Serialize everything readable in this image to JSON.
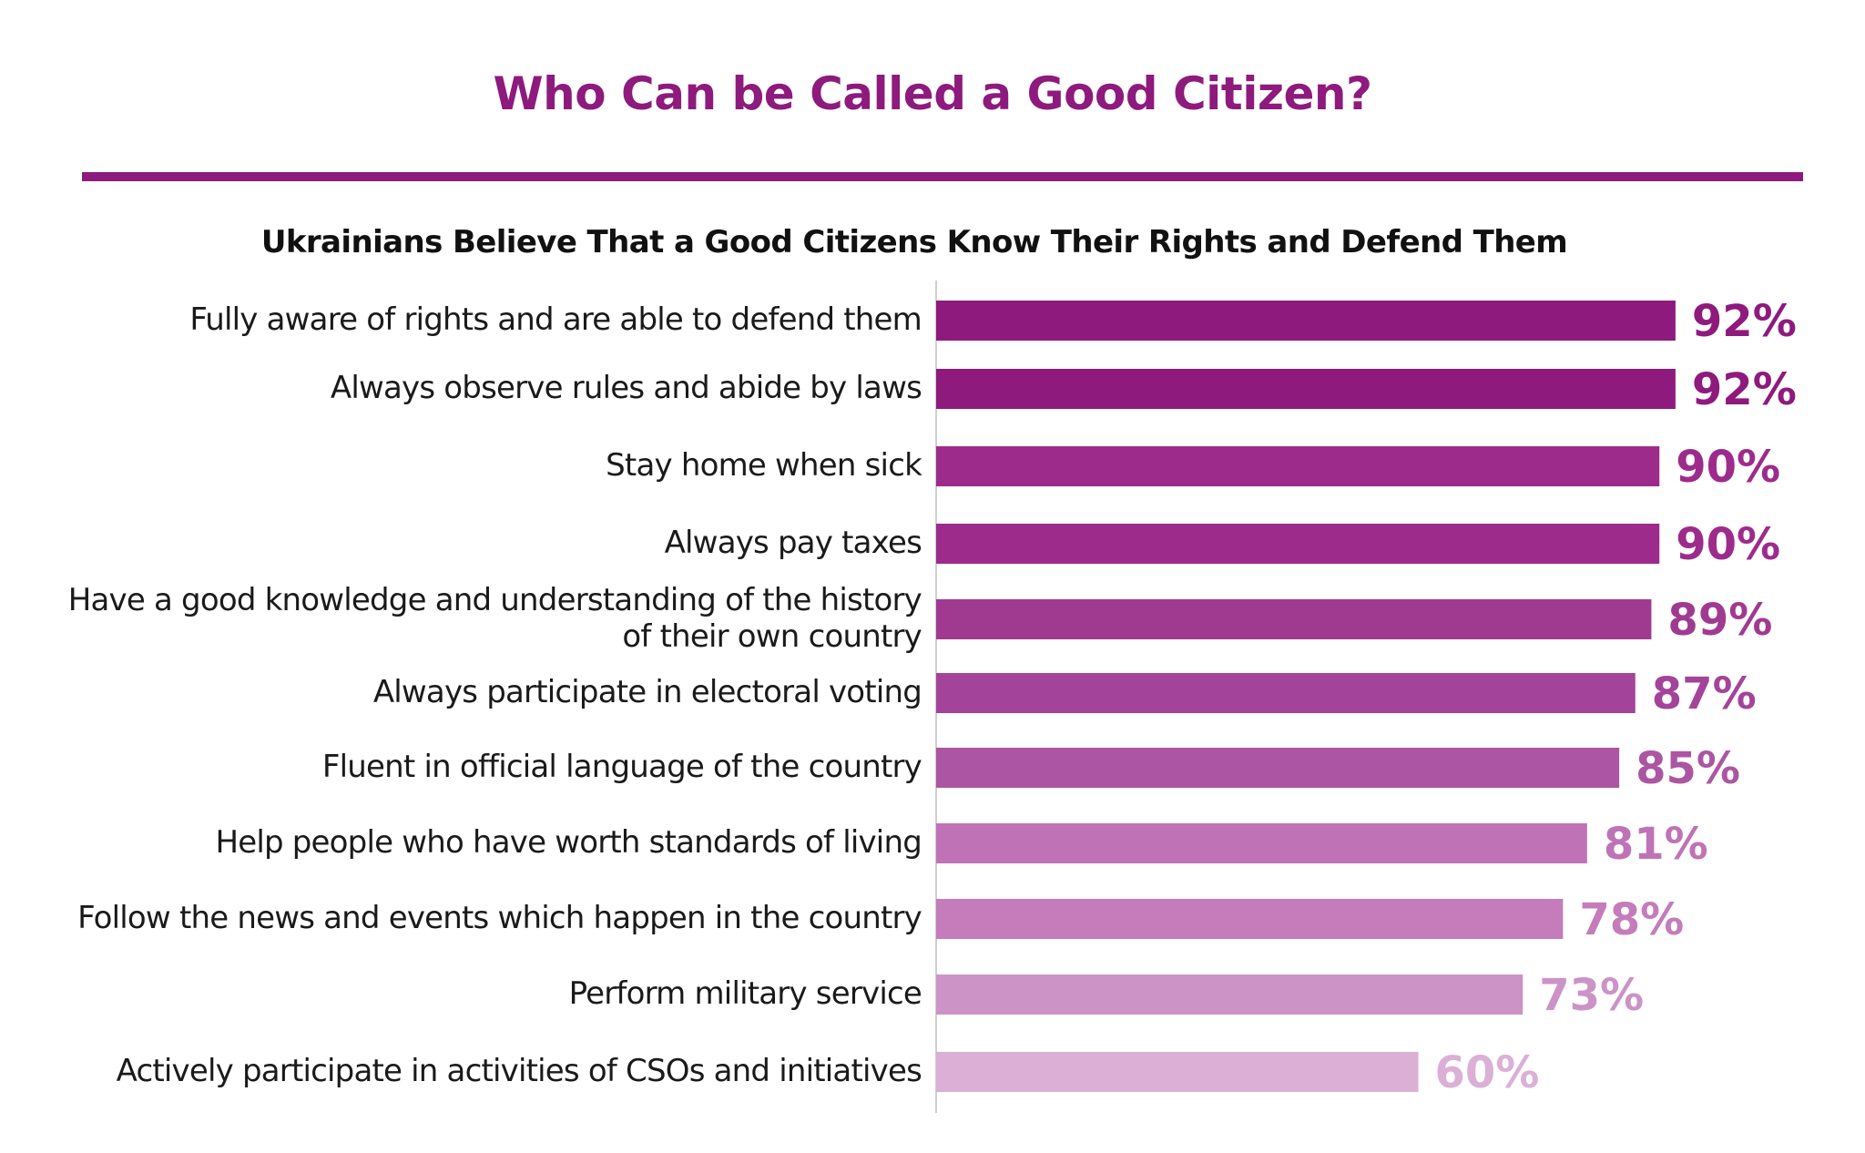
{
  "title": "Who Can be Called a Good Citizen?",
  "colors": {
    "title": "#8e1a7e",
    "subtitle": "#111111",
    "axis": "#cfcfcf",
    "bars": [
      "#8e1a7e",
      "#8e1a7e",
      "#9d2b8c",
      "#9d2b8c",
      "#a03a91",
      "#a3449a",
      "#ac55a2",
      "#bf73b6",
      "#c47cba",
      "#cc93c7",
      "#dbafd6"
    ]
  },
  "chart_data": {
    "type": "bar",
    "orientation": "horizontal",
    "title": "Ukrainians Believe That a Good Citizens Know Their Rights and Defend Them",
    "categories": [
      [
        "Fully aware of rights and are able to defend them"
      ],
      [
        "Always observe rules and abide by laws"
      ],
      [
        "Stay home when sick"
      ],
      [
        "Always pay taxes"
      ],
      [
        "Have a good knowledge and understanding of the history",
        "of their own country"
      ],
      [
        "Always participate in electoral voting"
      ],
      [
        "Fluent in official language of the country"
      ],
      [
        "Help people who have worth standards of living"
      ],
      [
        "Follow the news and events which happen in the country"
      ],
      [
        "Perform military service"
      ],
      [
        "Actively participate in activities of CSOs and initiatives"
      ]
    ],
    "values": [
      92,
      92,
      90,
      90,
      89,
      87,
      85,
      81,
      78,
      73,
      60
    ],
    "value_labels": [
      "92%",
      "92%",
      "90%",
      "90%",
      "89%",
      "87%",
      "85%",
      "81%",
      "78%",
      "73%",
      "60%"
    ],
    "xlim": [
      0,
      100
    ]
  }
}
